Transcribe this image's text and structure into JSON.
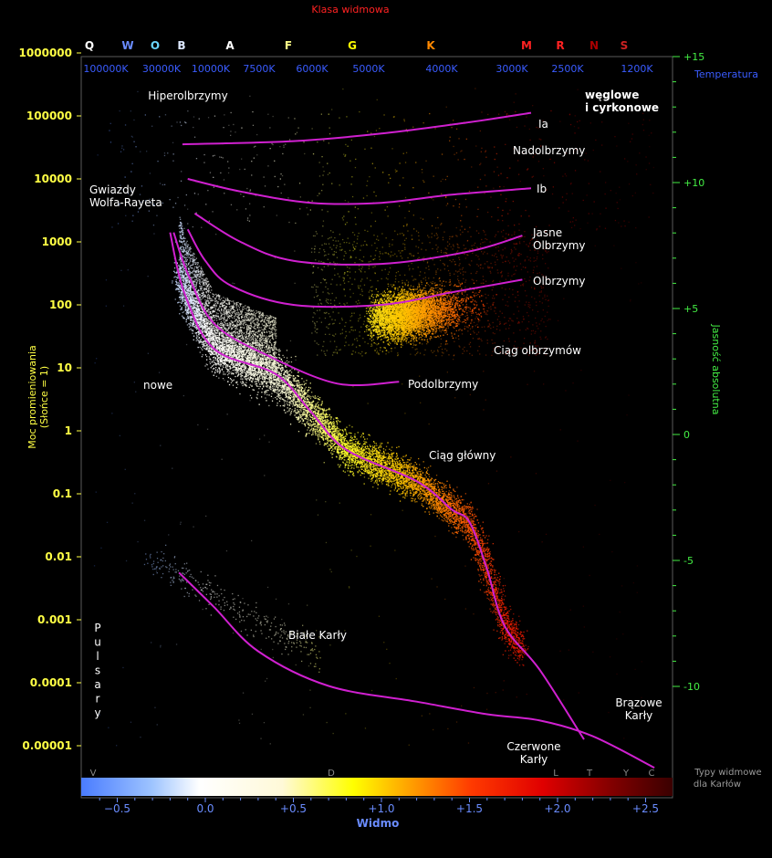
{
  "chart_data": {
    "type": "scatter",
    "title": "Klasa widmowa",
    "xlabel": "Widmo",
    "ylabel_left": "Moc promieniowania",
    "ylabel_left_sub": "(Słońce = 1)",
    "ylabel_right": "Jasność absolutna",
    "top_temp_label": "Temperatura",
    "dwarf_types_label": [
      "Typy widmowe",
      "dla Karłów"
    ],
    "spectral_classes": [
      {
        "label": "Q",
        "color": "#ffffff"
      },
      {
        "label": "W",
        "color": "#6a8cff"
      },
      {
        "label": "O",
        "color": "#6ad6ff"
      },
      {
        "label": "B",
        "color": "#dde8ff"
      },
      {
        "label": "A",
        "color": "#ffffff"
      },
      {
        "label": "F",
        "color": "#ffff88"
      },
      {
        "label": "G",
        "color": "#ffff00"
      },
      {
        "label": "K",
        "color": "#ff8800"
      },
      {
        "label": "M",
        "color": "#ff2222"
      },
      {
        "label": "R",
        "color": "#ff2222"
      },
      {
        "label": "N",
        "color": "#aa0000"
      },
      {
        "label": "S",
        "color": "#cc2222"
      }
    ],
    "temperatures": [
      "100000K",
      "30000K",
      "10000K",
      "7500K",
      "6000K",
      "5000K",
      "4000K",
      "3000K",
      "2500K",
      "1200K"
    ],
    "color_index_ticks": [
      {
        "label": "−0.5",
        "x": -0.5
      },
      {
        "label": "0.0",
        "x": 0.0
      },
      {
        "label": "+0.5",
        "x": 0.5
      },
      {
        "label": "+1.0",
        "x": 1.0
      },
      {
        "label": "+1.5",
        "x": 1.5
      },
      {
        "label": "+2.0",
        "x": 2.0
      },
      {
        "label": "+2.5",
        "x": 2.5
      }
    ],
    "luminosity_ticks": [
      {
        "label": "1000000",
        "log": 6
      },
      {
        "label": "100000",
        "log": 5
      },
      {
        "label": "10000",
        "log": 4
      },
      {
        "label": "1000",
        "log": 3
      },
      {
        "label": "100",
        "log": 2
      },
      {
        "label": "10",
        "log": 1
      },
      {
        "label": "1",
        "log": 0
      },
      {
        "label": "0.1",
        "log": -1
      },
      {
        "label": "0.01",
        "log": -2
      },
      {
        "label": "0.001",
        "log": -3
      },
      {
        "label": "0.0001",
        "log": -4
      },
      {
        "label": "0.00001",
        "log": -5
      }
    ],
    "abs_mag_ticks": [
      {
        "label": "-10",
        "mag": -10
      },
      {
        "label": "-5",
        "mag": -5
      },
      {
        "label": "0",
        "mag": 0
      },
      {
        "label": "+5",
        "mag": 5
      },
      {
        "label": "+10",
        "mag": 10
      },
      {
        "label": "+15",
        "mag": 15
      }
    ],
    "dwarf_spectral_types": [
      "V",
      "D",
      "L",
      "T",
      "Y",
      "C"
    ],
    "xlim": [
      -0.72,
      2.6
    ],
    "ylim_log": [
      -5.5,
      6.3
    ],
    "sequences": [
      {
        "name": "Ia",
        "points": [
          [
            -0.13,
            4.55
          ],
          [
            0.5,
            4.6
          ],
          [
            1.0,
            4.72
          ],
          [
            1.5,
            4.9
          ],
          [
            1.85,
            5.05
          ]
        ]
      },
      {
        "name": "Ib",
        "points": [
          [
            -0.1,
            4.0
          ],
          [
            0.2,
            3.8
          ],
          [
            0.6,
            3.62
          ],
          [
            1.0,
            3.62
          ],
          [
            1.4,
            3.75
          ],
          [
            1.85,
            3.85
          ]
        ]
      },
      {
        "name": "Jasne Olbrzymy",
        "points": [
          [
            -0.06,
            3.45
          ],
          [
            0.2,
            3.0
          ],
          [
            0.5,
            2.7
          ],
          [
            1.0,
            2.65
          ],
          [
            1.5,
            2.85
          ],
          [
            1.8,
            3.1
          ]
        ]
      },
      {
        "name": "Olbrzymy",
        "points": [
          [
            -0.1,
            3.2
          ],
          [
            0.0,
            2.7
          ],
          [
            0.15,
            2.3
          ],
          [
            0.5,
            2.0
          ],
          [
            1.0,
            2.0
          ],
          [
            1.4,
            2.2
          ],
          [
            1.8,
            2.4
          ]
        ]
      },
      {
        "name": "Podolbrzymy",
        "points": [
          [
            -0.18,
            3.15
          ],
          [
            -0.1,
            2.5
          ],
          [
            0.05,
            1.7
          ],
          [
            0.35,
            1.2
          ],
          [
            0.75,
            0.75
          ],
          [
            1.1,
            0.78
          ]
        ]
      },
      {
        "name": "Ciąg główny",
        "points": [
          [
            -0.2,
            3.15
          ],
          [
            -0.12,
            2.2
          ],
          [
            0.05,
            1.3
          ],
          [
            0.4,
            0.9
          ],
          [
            0.6,
            0.3
          ],
          [
            0.8,
            -0.3
          ],
          [
            1.2,
            -0.8
          ],
          [
            1.4,
            -1.25
          ],
          [
            1.5,
            -1.45
          ],
          [
            1.6,
            -2.2
          ],
          [
            1.7,
            -3.1
          ],
          [
            1.9,
            -3.8
          ],
          [
            2.15,
            -4.9
          ]
        ]
      },
      {
        "name": "Białe Karły",
        "points": [
          [
            -0.15,
            -2.25
          ],
          [
            0.05,
            -2.8
          ],
          [
            0.3,
            -3.5
          ],
          [
            0.7,
            -4.05
          ],
          [
            1.2,
            -4.3
          ],
          [
            1.6,
            -4.5
          ],
          [
            1.9,
            -4.6
          ],
          [
            2.2,
            -4.85
          ],
          [
            2.55,
            -5.35
          ]
        ]
      }
    ],
    "annotations": [
      {
        "id": "hiper",
        "text": "Hiperolbrzymy"
      },
      {
        "id": "carbon",
        "text": "węglowe i cyrkonowe"
      },
      {
        "id": "ia",
        "text": "Ia"
      },
      {
        "id": "nadol",
        "text": "Nadolbrzymy"
      },
      {
        "id": "ib",
        "text": "Ib"
      },
      {
        "id": "wolf",
        "text": "Gwiazdy Wolfa-Rayeta"
      },
      {
        "id": "jasne",
        "text": "Jasne Olbrzymy"
      },
      {
        "id": "olbrzymy",
        "text": "Olbrzymy"
      },
      {
        "id": "ciagolb",
        "text": "Ciąg olbrzymów"
      },
      {
        "id": "podol",
        "text": "Podolbrzymy"
      },
      {
        "id": "nowe",
        "text": "nowe"
      },
      {
        "id": "ciaggl",
        "text": "Ciąg główny"
      },
      {
        "id": "bialek",
        "text": "Białe Karły"
      },
      {
        "id": "pulsary",
        "text": "Pulsary"
      },
      {
        "id": "brazowe",
        "text": "Brązowe Karły"
      },
      {
        "id": "czerwone",
        "text": "Czerwone Karły"
      }
    ],
    "colors": {
      "curve": "#d020d0",
      "left_axis": "#ffff44",
      "right_axis": "#44ee44",
      "top_axis": "#3a5cff",
      "xaxis": "#6a8cff",
      "title": "#ff2222"
    }
  }
}
